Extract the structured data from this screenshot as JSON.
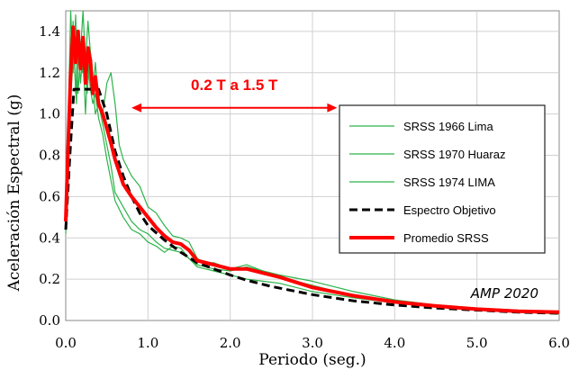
{
  "chart_data": {
    "type": "line",
    "xlabel": "Periodo (seg.)",
    "ylabel": "Aceleración Espectral (g)",
    "xlim": [
      0,
      6
    ],
    "ylim": [
      0,
      1.5
    ],
    "x_ticks": [
      "0.0",
      "1.0",
      "2.0",
      "3.0",
      "4.0",
      "5.0",
      "6.0"
    ],
    "y_ticks": [
      "0.0",
      "0.2",
      "0.4",
      "0.6",
      "0.8",
      "1.0",
      "1.2",
      "1.4"
    ],
    "legend_position": "right",
    "annotation": {
      "text": "0.2 T  a  1.5 T",
      "x_start": 0.8,
      "x_end": 3.3,
      "y": 1.03,
      "color": "#ff0000"
    },
    "signature": "AMP  2020",
    "series": [
      {
        "name": "SRSS 1966 Lima",
        "color": "#2db34a",
        "width": 1.2,
        "dash": "",
        "x": [
          0,
          0.03,
          0.06,
          0.1,
          0.13,
          0.16,
          0.2,
          0.23,
          0.26,
          0.3,
          0.33,
          0.36,
          0.4,
          0.45,
          0.5,
          0.55,
          0.6,
          0.7,
          0.8,
          0.9,
          1.0,
          1.1,
          1.2,
          1.3,
          1.4,
          1.5,
          1.6,
          1.8,
          2.0,
          2.2,
          2.4,
          2.6,
          3.0,
          3.5,
          4.0,
          4.5,
          5.0,
          5.5,
          6.0
        ],
        "y": [
          0.42,
          0.75,
          1.1,
          1.3,
          1.05,
          1.4,
          1.2,
          1.35,
          1.1,
          1.3,
          1.15,
          1.0,
          1.05,
          0.95,
          0.85,
          0.75,
          0.62,
          0.55,
          0.48,
          0.44,
          0.42,
          0.38,
          0.35,
          0.34,
          0.33,
          0.3,
          0.27,
          0.25,
          0.24,
          0.26,
          0.24,
          0.21,
          0.17,
          0.12,
          0.09,
          0.07,
          0.055,
          0.045,
          0.035
        ]
      },
      {
        "name": "SRSS 1970 Huaraz",
        "color": "#2db34a",
        "width": 1.2,
        "dash": "",
        "x": [
          0,
          0.03,
          0.06,
          0.09,
          0.12,
          0.15,
          0.18,
          0.21,
          0.24,
          0.27,
          0.3,
          0.33,
          0.36,
          0.4,
          0.45,
          0.5,
          0.55,
          0.6,
          0.65,
          0.7,
          0.8,
          0.9,
          1.0,
          1.1,
          1.2,
          1.3,
          1.4,
          1.5,
          1.6,
          1.7,
          1.8,
          2.0,
          2.2,
          2.4,
          2.6,
          3.0,
          3.5,
          4.0,
          4.5,
          5.0,
          5.5,
          6.0
        ],
        "y": [
          0.5,
          0.95,
          1.5,
          1.2,
          1.48,
          1.1,
          1.3,
          1.5,
          1.25,
          1.45,
          1.3,
          1.1,
          1.25,
          1.05,
          1.0,
          1.15,
          1.2,
          1.05,
          0.85,
          0.78,
          0.7,
          0.65,
          0.55,
          0.52,
          0.46,
          0.41,
          0.4,
          0.38,
          0.3,
          0.28,
          0.28,
          0.25,
          0.27,
          0.24,
          0.22,
          0.19,
          0.14,
          0.1,
          0.075,
          0.06,
          0.05,
          0.04
        ]
      },
      {
        "name": "SRSS 1974 LIMA",
        "color": "#2db34a",
        "width": 1.2,
        "dash": "",
        "x": [
          0,
          0.03,
          0.06,
          0.09,
          0.12,
          0.15,
          0.18,
          0.21,
          0.24,
          0.27,
          0.3,
          0.33,
          0.36,
          0.4,
          0.45,
          0.5,
          0.55,
          0.6,
          0.7,
          0.8,
          0.9,
          1.0,
          1.1,
          1.2,
          1.3,
          1.4,
          1.5,
          1.6,
          1.8,
          2.0,
          2.2,
          2.4,
          2.6,
          3.0,
          3.5,
          4.0,
          4.5,
          5.0,
          5.5,
          6.0
        ],
        "y": [
          0.45,
          0.7,
          1.2,
          1.45,
          1.1,
          1.35,
          1.15,
          1.3,
          1.0,
          1.25,
          1.12,
          1.05,
          1.1,
          0.98,
          0.9,
          0.78,
          0.68,
          0.58,
          0.5,
          0.44,
          0.42,
          0.38,
          0.36,
          0.33,
          0.36,
          0.35,
          0.3,
          0.26,
          0.24,
          0.22,
          0.2,
          0.19,
          0.18,
          0.14,
          0.11,
          0.085,
          0.065,
          0.05,
          0.04,
          0.032
        ]
      },
      {
        "name": "Espectro Objetivo",
        "color": "#000000",
        "width": 3,
        "dash": "9,5",
        "x": [
          0,
          0.05,
          0.1,
          0.15,
          0.2,
          0.3,
          0.4,
          0.5,
          0.6,
          0.7,
          0.8,
          0.9,
          1.0,
          1.2,
          1.4,
          1.6,
          1.8,
          2.0,
          2.2,
          2.5,
          3.0,
          3.5,
          4.0,
          4.5,
          5.0,
          5.5,
          6.0
        ],
        "y": [
          0.44,
          0.8,
          1.12,
          1.12,
          1.12,
          1.12,
          1.12,
          1.0,
          0.82,
          0.7,
          0.6,
          0.52,
          0.46,
          0.39,
          0.33,
          0.28,
          0.25,
          0.22,
          0.195,
          0.165,
          0.125,
          0.095,
          0.075,
          0.06,
          0.05,
          0.04,
          0.035
        ]
      },
      {
        "name": "Promedio SRSS",
        "color": "#ff0000",
        "width": 4,
        "dash": "",
        "x": [
          0,
          0.03,
          0.06,
          0.09,
          0.12,
          0.15,
          0.18,
          0.21,
          0.24,
          0.27,
          0.3,
          0.33,
          0.36,
          0.4,
          0.45,
          0.5,
          0.55,
          0.6,
          0.65,
          0.7,
          0.8,
          0.9,
          1.0,
          1.1,
          1.2,
          1.3,
          1.4,
          1.5,
          1.6,
          1.8,
          2.0,
          2.2,
          2.4,
          2.6,
          3.0,
          3.5,
          4.0,
          4.5,
          5.0,
          5.5,
          6.0
        ],
        "y": [
          0.48,
          0.85,
          1.2,
          1.42,
          1.25,
          1.4,
          1.22,
          1.37,
          1.15,
          1.32,
          1.26,
          1.1,
          1.18,
          1.05,
          1.0,
          0.93,
          0.86,
          0.78,
          0.72,
          0.66,
          0.6,
          0.55,
          0.5,
          0.45,
          0.41,
          0.38,
          0.37,
          0.34,
          0.29,
          0.27,
          0.25,
          0.25,
          0.23,
          0.21,
          0.16,
          0.12,
          0.09,
          0.07,
          0.055,
          0.045,
          0.04
        ]
      }
    ]
  }
}
